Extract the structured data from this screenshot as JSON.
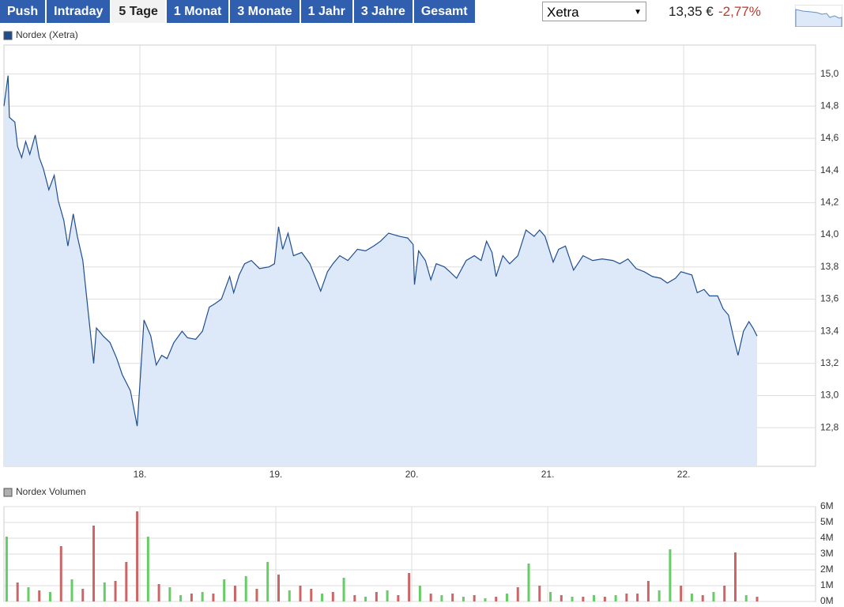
{
  "tabs": [
    "Push",
    "Intraday",
    "5 Tage",
    "1 Monat",
    "3 Monate",
    "1 Jahr",
    "3 Jahre",
    "Gesamt"
  ],
  "active_tab": 2,
  "exchange": "Xetra",
  "price": "13,35 €",
  "change": "-2,77%",
  "chart_data": [
    {
      "type": "line",
      "series": [
        {
          "name": "Nordex (Xetra)",
          "color": "#1f4e8f",
          "fill": "#dde9f9",
          "values": [
            14.8,
            14.99,
            14.73,
            14.7,
            14.55,
            14.48,
            14.58,
            14.5,
            14.62,
            14.48,
            14.41,
            14.28,
            14.37,
            14.21,
            14.09,
            13.93,
            14.13,
            13.99,
            13.84,
            13.6,
            13.2,
            13.42,
            13.37,
            13.33,
            13.23,
            13.13,
            13.03,
            12.81,
            13.2,
            13.47,
            13.37,
            13.19,
            13.25,
            13.23,
            13.33,
            13.4,
            13.36,
            13.35,
            13.4,
            13.55,
            13.57,
            13.6,
            13.74,
            13.64,
            13.75,
            13.82,
            13.84,
            13.79,
            13.8,
            13.82,
            14.05,
            13.91,
            14.01,
            13.87,
            13.89,
            13.82,
            13.65,
            13.77,
            13.82,
            13.87,
            13.84,
            13.91,
            13.9,
            13.93,
            13.96,
            14.01,
            13.99,
            13.98,
            13.94,
            13.69,
            13.9,
            13.84,
            13.72,
            13.82,
            13.8,
            13.77,
            13.73,
            13.84,
            13.87,
            13.84,
            13.96,
            13.89,
            13.74,
            13.87,
            13.82,
            13.87,
            14.03,
            13.99,
            14.03,
            13.99,
            13.83,
            13.91,
            13.93,
            13.78,
            13.87,
            13.84,
            13.85,
            13.84,
            13.82,
            13.85,
            13.79,
            13.77,
            13.74,
            13.73,
            13.7,
            13.73,
            13.77,
            13.75,
            13.64,
            13.66,
            13.62,
            13.62,
            13.54,
            13.5,
            13.35,
            13.25,
            13.4,
            13.46,
            13.42,
            13.37
          ]
        }
      ],
      "x": [
        17.0,
        17.03,
        17.04,
        17.08,
        17.1,
        17.13,
        17.16,
        17.19,
        17.23,
        17.26,
        17.29,
        17.33,
        17.37,
        17.4,
        17.44,
        17.47,
        17.51,
        17.54,
        17.58,
        17.61,
        17.66,
        17.68,
        17.73,
        17.78,
        17.83,
        17.87,
        17.93,
        17.98,
        18.01,
        18.03,
        18.08,
        18.12,
        18.16,
        18.2,
        18.25,
        18.31,
        18.35,
        18.41,
        18.46,
        18.51,
        18.55,
        18.6,
        18.66,
        18.69,
        18.73,
        18.77,
        18.82,
        18.88,
        18.95,
        18.99,
        19.02,
        19.05,
        19.09,
        19.13,
        19.19,
        19.25,
        19.33,
        19.38,
        19.42,
        19.47,
        19.53,
        19.6,
        19.66,
        19.72,
        19.77,
        19.83,
        19.91,
        19.97,
        20.01,
        20.02,
        20.05,
        20.1,
        20.14,
        20.18,
        20.24,
        20.28,
        20.33,
        20.4,
        20.46,
        20.51,
        20.55,
        20.59,
        20.62,
        20.67,
        20.72,
        20.78,
        20.84,
        20.9,
        20.94,
        20.98,
        21.04,
        21.08,
        21.13,
        21.19,
        21.26,
        21.33,
        21.4,
        21.48,
        21.53,
        21.59,
        21.65,
        21.71,
        21.77,
        21.83,
        21.88,
        21.94,
        21.98,
        22.06,
        22.1,
        22.15,
        22.19,
        22.25,
        22.29,
        22.33,
        22.37,
        22.4,
        22.44,
        22.48,
        22.51,
        22.54
      ],
      "xlim": [
        17,
        22.97
      ],
      "xticks": [
        {
          "value": 18,
          "label": "18."
        },
        {
          "value": 19,
          "label": "19."
        },
        {
          "value": 20,
          "label": "20."
        },
        {
          "value": 21,
          "label": "21."
        },
        {
          "value": 22,
          "label": "22."
        }
      ],
      "ylim": [
        12.56,
        15.18
      ],
      "yticks": [
        {
          "value": 12.8,
          "label": "12,8"
        },
        {
          "value": 13.0,
          "label": "13,0"
        },
        {
          "value": 13.2,
          "label": "13,2"
        },
        {
          "value": 13.4,
          "label": "13,4"
        },
        {
          "value": 13.6,
          "label": "13,6"
        },
        {
          "value": 13.8,
          "label": "13,8"
        },
        {
          "value": 14.0,
          "label": "14,0"
        },
        {
          "value": 14.2,
          "label": "14,2"
        },
        {
          "value": 14.4,
          "label": "14,4"
        },
        {
          "value": 14.6,
          "label": "14,6"
        },
        {
          "value": 14.8,
          "label": "14,8"
        },
        {
          "value": 15.0,
          "label": "15,0"
        }
      ],
      "grid": true
    },
    {
      "type": "bar",
      "series": [
        {
          "name": "Nordex Volumen",
          "color": "#b0b0b0",
          "values": [
            4.1,
            1.2,
            0.9,
            0.7,
            0.6,
            3.5,
            1.4,
            0.8,
            4.8,
            1.2,
            1.3,
            2.5,
            5.7,
            4.1,
            1.1,
            0.9,
            0.4,
            0.5,
            0.6,
            0.5,
            1.4,
            1.0,
            1.6,
            0.8,
            2.5,
            1.7,
            0.7,
            1.0,
            0.8,
            0.5,
            0.6,
            1.5,
            0.4,
            0.3,
            0.6,
            0.7,
            0.4,
            1.8,
            1.0,
            0.5,
            0.4,
            0.5,
            0.3,
            0.4,
            0.2,
            0.3,
            0.5,
            0.9,
            2.4,
            1.0,
            0.6,
            0.4,
            0.3,
            0.3,
            0.4,
            0.3,
            0.4,
            0.5,
            0.5,
            1.3,
            0.7,
            3.3,
            1.0,
            0.5,
            0.4,
            0.6,
            1.0,
            3.1,
            0.4,
            0.3
          ]
        }
      ],
      "x": [
        17.02,
        17.1,
        17.18,
        17.26,
        17.34,
        17.42,
        17.5,
        17.58,
        17.66,
        17.74,
        17.82,
        17.9,
        17.98,
        18.06,
        18.14,
        18.22,
        18.3,
        18.38,
        18.46,
        18.54,
        18.62,
        18.7,
        18.78,
        18.86,
        18.94,
        19.02,
        19.1,
        19.18,
        19.26,
        19.34,
        19.42,
        19.5,
        19.58,
        19.66,
        19.74,
        19.82,
        19.9,
        19.98,
        20.06,
        20.14,
        20.22,
        20.3,
        20.38,
        20.46,
        20.54,
        20.62,
        20.7,
        20.78,
        20.86,
        20.94,
        21.02,
        21.1,
        21.18,
        21.26,
        21.34,
        21.42,
        21.5,
        21.58,
        21.66,
        21.74,
        21.82,
        21.9,
        21.98,
        22.06,
        22.14,
        22.22,
        22.3,
        22.38,
        22.46,
        22.54
      ],
      "colors": [
        "#6c6",
        "#c66",
        "#6c6",
        "#c66",
        "#6c6",
        "#c66",
        "#6c6",
        "#c66",
        "#c66",
        "#6c6",
        "#c66",
        "#c66",
        "#c66",
        "#6c6",
        "#c66",
        "#6c6",
        "#6c6",
        "#c66",
        "#6c6",
        "#c66",
        "#6c6",
        "#c66",
        "#6c6",
        "#c66",
        "#6c6",
        "#c66",
        "#6c6",
        "#c66",
        "#c66",
        "#6c6",
        "#c66",
        "#6c6",
        "#c66",
        "#6c6",
        "#c66",
        "#6c6",
        "#c66",
        "#c66",
        "#6c6",
        "#c66",
        "#6c6",
        "#c66",
        "#6c6",
        "#c66",
        "#6c6",
        "#c66",
        "#6c6",
        "#c66",
        "#6c6",
        "#c66",
        "#6c6",
        "#c66",
        "#6c6",
        "#c66",
        "#6c6",
        "#c66",
        "#6c6",
        "#c66",
        "#c66",
        "#c66",
        "#6c6",
        "#6c6",
        "#c66",
        "#6c6",
        "#c66",
        "#6c6",
        "#c66",
        "#c66",
        "#6c6",
        "#c66"
      ],
      "xlim": [
        17,
        22.97
      ],
      "ylim": [
        0,
        6
      ],
      "yticks": [
        {
          "value": 0,
          "label": "0M"
        },
        {
          "value": 1,
          "label": "1M"
        },
        {
          "value": 2,
          "label": "2M"
        },
        {
          "value": 3,
          "label": "3M"
        },
        {
          "value": 4,
          "label": "4M"
        },
        {
          "value": 5,
          "label": "5M"
        },
        {
          "value": 6,
          "label": "6M"
        }
      ],
      "grid": true
    }
  ]
}
